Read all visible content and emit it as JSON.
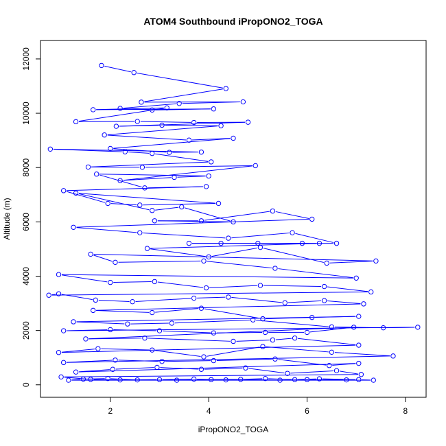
{
  "chart_data": {
    "type": "line",
    "title": "ATOM4 Southbound iPropONO2_TOGA",
    "xlabel": "iPropONO2_TOGA",
    "ylabel": "Altitude (m)",
    "xlim": [
      0.58,
      8.42
    ],
    "ylim": [
      -460,
      12680
    ],
    "x_ticks": [
      2,
      4,
      6,
      8
    ],
    "x_tick_labels": [
      "2",
      "4",
      "6",
      "8"
    ],
    "y_ticks": [
      0,
      2000,
      4000,
      6000,
      8000,
      10000,
      12000
    ],
    "y_tick_labels": [
      "0",
      "2000",
      "4000",
      "6000",
      "8000",
      "10000",
      "12000"
    ],
    "grid": false,
    "legend": "none",
    "marker": "open-circle",
    "series": [
      {
        "color": "#0000ff",
        "points": [
          [
            1.82,
            11760
          ],
          [
            2.48,
            11500
          ],
          [
            4.35,
            10910
          ],
          [
            2.63,
            10410
          ],
          [
            4.7,
            10420
          ],
          [
            3.4,
            10360
          ],
          [
            2.2,
            10180
          ],
          [
            2.85,
            10120
          ],
          [
            4.1,
            10160
          ],
          [
            1.65,
            10130
          ],
          [
            3.15,
            10200
          ],
          [
            1.3,
            9690
          ],
          [
            2.55,
            9700
          ],
          [
            3.7,
            9660
          ],
          [
            4.8,
            9670
          ],
          [
            2.12,
            9520
          ],
          [
            3.05,
            9560
          ],
          [
            4.25,
            9540
          ],
          [
            1.88,
            9200
          ],
          [
            3.6,
            9010
          ],
          [
            4.5,
            9080
          ],
          [
            2.0,
            8700
          ],
          [
            3.2,
            8560
          ],
          [
            3.85,
            8570
          ],
          [
            0.78,
            8680
          ],
          [
            2.3,
            8580
          ],
          [
            2.85,
            8520
          ],
          [
            4.05,
            8210
          ],
          [
            1.55,
            8020
          ],
          [
            2.65,
            8010
          ],
          [
            4.95,
            8070
          ],
          [
            2.2,
            7520
          ],
          [
            3.3,
            7640
          ],
          [
            4.0,
            7690
          ],
          [
            1.72,
            7760
          ],
          [
            2.7,
            7250
          ],
          [
            3.95,
            7300
          ],
          [
            1.05,
            7150
          ],
          [
            1.95,
            6680
          ],
          [
            2.6,
            6620
          ],
          [
            4.2,
            6680
          ],
          [
            1.3,
            7060
          ],
          [
            2.85,
            6420
          ],
          [
            3.45,
            6550
          ],
          [
            4.5,
            6000
          ],
          [
            2.9,
            6040
          ],
          [
            3.85,
            6040
          ],
          [
            5.3,
            6400
          ],
          [
            6.1,
            6100
          ],
          [
            1.25,
            5800
          ],
          [
            2.6,
            5600
          ],
          [
            4.4,
            5400
          ],
          [
            5.7,
            5600
          ],
          [
            6.6,
            5210
          ],
          [
            3.6,
            5210
          ],
          [
            4.25,
            5210
          ],
          [
            5.0,
            5210
          ],
          [
            5.9,
            5210
          ],
          [
            6.25,
            5210
          ],
          [
            2.75,
            5020
          ],
          [
            4.0,
            4710
          ],
          [
            5.05,
            5060
          ],
          [
            6.4,
            4480
          ],
          [
            7.4,
            4560
          ],
          [
            1.6,
            4810
          ],
          [
            2.1,
            4510
          ],
          [
            3.9,
            4560
          ],
          [
            5.35,
            4290
          ],
          [
            7.0,
            3930
          ],
          [
            0.95,
            4060
          ],
          [
            2.0,
            3770
          ],
          [
            2.9,
            3800
          ],
          [
            3.95,
            3570
          ],
          [
            5.05,
            3660
          ],
          [
            6.35,
            3620
          ],
          [
            7.3,
            3420
          ],
          [
            0.75,
            3300
          ],
          [
            0.95,
            3350
          ],
          [
            1.7,
            3120
          ],
          [
            2.45,
            3060
          ],
          [
            3.7,
            3190
          ],
          [
            4.4,
            3230
          ],
          [
            5.55,
            3020
          ],
          [
            6.35,
            3100
          ],
          [
            7.15,
            2980
          ],
          [
            1.65,
            2740
          ],
          [
            2.85,
            2660
          ],
          [
            3.85,
            2820
          ],
          [
            5.1,
            2430
          ],
          [
            6.1,
            2480
          ],
          [
            7.05,
            2520
          ],
          [
            1.25,
            2320
          ],
          [
            2.35,
            2240
          ],
          [
            3.25,
            2270
          ],
          [
            4.9,
            2390
          ],
          [
            6.5,
            2130
          ],
          [
            7.55,
            2100
          ],
          [
            8.25,
            2120
          ],
          [
            1.05,
            1990
          ],
          [
            2.0,
            2030
          ],
          [
            3.0,
            1990
          ],
          [
            4.1,
            1910
          ],
          [
            5.15,
            1930
          ],
          [
            6.0,
            1930
          ],
          [
            6.95,
            2120
          ],
          [
            1.5,
            1690
          ],
          [
            2.7,
            1720
          ],
          [
            4.5,
            1600
          ],
          [
            5.3,
            1650
          ],
          [
            5.75,
            1720
          ],
          [
            7.05,
            1460
          ],
          [
            0.95,
            1190
          ],
          [
            1.75,
            1330
          ],
          [
            2.85,
            1280
          ],
          [
            3.9,
            1030
          ],
          [
            5.1,
            1410
          ],
          [
            6.5,
            1200
          ],
          [
            7.75,
            1060
          ],
          [
            1.05,
            820
          ],
          [
            2.1,
            910
          ],
          [
            3.05,
            860
          ],
          [
            4.1,
            890
          ],
          [
            5.35,
            950
          ],
          [
            6.45,
            710
          ],
          [
            7.05,
            790
          ],
          [
            1.3,
            470
          ],
          [
            2.05,
            570
          ],
          [
            2.95,
            640
          ],
          [
            3.85,
            570
          ],
          [
            4.75,
            620
          ],
          [
            5.6,
            420
          ],
          [
            6.6,
            520
          ],
          [
            7.1,
            380
          ],
          [
            1.0,
            290
          ],
          [
            1.6,
            200
          ],
          [
            2.2,
            180
          ],
          [
            3.0,
            190
          ],
          [
            3.7,
            210
          ],
          [
            4.35,
            180
          ],
          [
            5.15,
            230
          ],
          [
            5.75,
            190
          ],
          [
            6.25,
            220
          ],
          [
            7.05,
            190
          ],
          [
            7.35,
            170
          ],
          [
            1.15,
            170
          ],
          [
            1.45,
            210
          ],
          [
            1.95,
            230
          ],
          [
            2.55,
            180
          ],
          [
            3.35,
            170
          ],
          [
            4.05,
            190
          ],
          [
            4.65,
            200
          ],
          [
            5.45,
            170
          ],
          [
            6.0,
            190
          ],
          [
            6.8,
            180
          ]
        ]
      }
    ]
  }
}
